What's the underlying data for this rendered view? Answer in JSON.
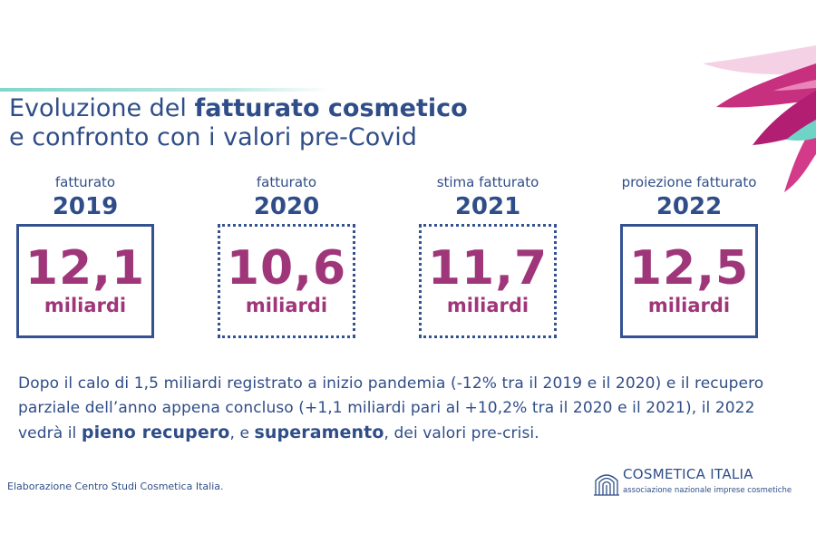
{
  "title": {
    "line1_plain": "Evoluzione del ",
    "line1_bold": "fatturato cosmetico",
    "line2": "e confronto con i valori pre-Covid"
  },
  "cards": [
    {
      "label": "fatturato",
      "year": "2019",
      "value": "12,1",
      "unit": "miliardi",
      "border": "solid"
    },
    {
      "label": "fatturato",
      "year": "2020",
      "value": "10,6",
      "unit": "miliardi",
      "border": "dotted"
    },
    {
      "label": "stima fatturato",
      "year": "2021",
      "value": "11,7",
      "unit": "miliardi",
      "border": "dotted"
    },
    {
      "label": "proiezione fatturato",
      "year": "2022",
      "value": "12,5",
      "unit": "miliardi",
      "border": "solid"
    }
  ],
  "paragraph": {
    "part1": "Dopo il calo di 1,5 miliardi registrato a inizio pandemia (-12% tra il 2019 e il 2020) e il recupero parziale dell’anno appena concluso (+1,1 miliardi pari al +10,2% tra il 2020 e il 2021), il 2022 vedrà il ",
    "bold1": "pieno recupero",
    "part2": ", e ",
    "bold2": "superamento",
    "part3": ", dei valori pre-crisi."
  },
  "footnote": "Elaborazione Centro Studi Cosmetica Italia.",
  "logo": {
    "name": "COSMETICA ITALIA",
    "subtitle": "associazione nazionale imprese cosmetiche"
  },
  "colors": {
    "navy": "#2f4d88",
    "magenta": "#a0367a",
    "teal": "#7fd6cc"
  }
}
